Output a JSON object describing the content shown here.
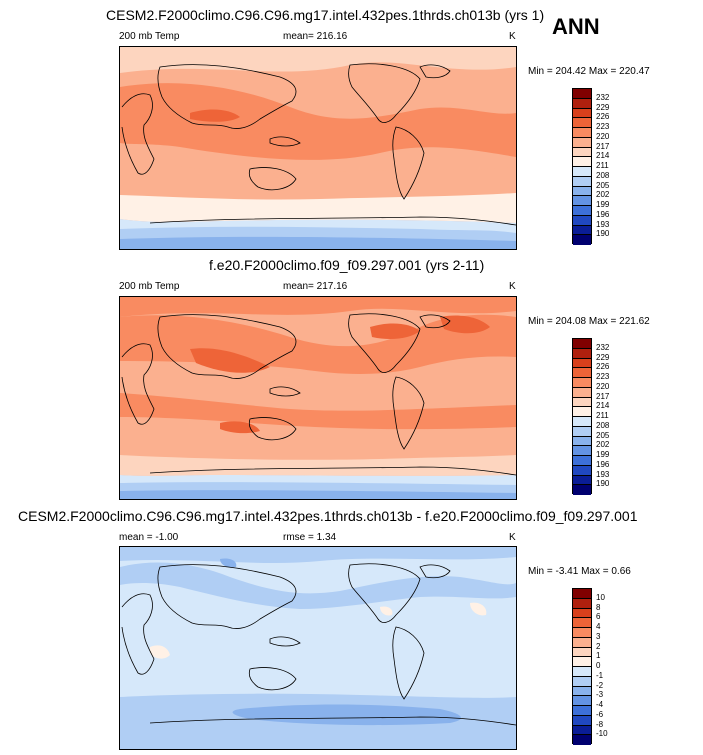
{
  "season": "ANN",
  "panels": [
    {
      "title": "CESM2.F2000climo.C96.C96.mg17.intel.432pes.1thrds.ch013b (yrs 1)",
      "variable": "200 mb Temp",
      "stat_text": "mean= 216.16",
      "rmse_text": "",
      "units": "K",
      "minmax": "Min = 204.42 Max = 220.47"
    },
    {
      "title": "f.e20.F2000climo.f09_f09.297.001 (yrs 2-11)",
      "variable": "200 mb Temp",
      "stat_text": "mean= 217.16",
      "rmse_text": "",
      "units": "K",
      "minmax": "Min = 204.08 Max = 221.62"
    },
    {
      "title": "CESM2.F2000climo.C96.C96.mg17.intel.432pes.1thrds.ch013b - f.e20.F2000climo.f09_f09.297.001",
      "variable": "",
      "stat_text": "mean =  -1.00",
      "rmse_text": "rmse =  1.34",
      "units": "K",
      "minmax": "Min =  -3.41 Max =   0.66"
    }
  ],
  "chart_data": [
    {
      "type": "heatmap",
      "title": "CESM2.F2000climo.C96.C96.mg17.intel.432pes.1thrds.ch013b (yrs 1)",
      "variable": "200 mb Temp",
      "units": "K",
      "mean": 216.16,
      "min": 204.42,
      "max": 220.47,
      "contour_levels": [
        "232",
        "229",
        "226",
        "223",
        "220",
        "217",
        "214",
        "211",
        "208",
        "205",
        "202",
        "199",
        "196",
        "193",
        "190"
      ],
      "colors": [
        "#800000",
        "#b0200e",
        "#d8401c",
        "#ee6438",
        "#f98b61",
        "#fbb08f",
        "#fdd5bf",
        "#fff1e6",
        "#d6e8fa",
        "#b0cef4",
        "#89b2ec",
        "#6393e3",
        "#3d70d8",
        "#2048c0",
        "#0a1d96",
        "#000070"
      ]
    },
    {
      "type": "heatmap",
      "title": "f.e20.F2000climo.f09_f09.297.001 (yrs 2-11)",
      "variable": "200 mb Temp",
      "units": "K",
      "mean": 217.16,
      "min": 204.08,
      "max": 221.62,
      "contour_levels": [
        "232",
        "229",
        "226",
        "223",
        "220",
        "217",
        "214",
        "211",
        "208",
        "205",
        "202",
        "199",
        "196",
        "193",
        "190"
      ],
      "colors": [
        "#800000",
        "#b0200e",
        "#d8401c",
        "#ee6438",
        "#f98b61",
        "#fbb08f",
        "#fdd5bf",
        "#fff1e6",
        "#d6e8fa",
        "#b0cef4",
        "#89b2ec",
        "#6393e3",
        "#3d70d8",
        "#2048c0",
        "#0a1d96",
        "#000070"
      ]
    },
    {
      "type": "heatmap",
      "title": "CESM2.F2000climo.C96.C96.mg17.intel.432pes.1thrds.ch013b - f.e20.F2000climo.f09_f09.297.001",
      "units": "K",
      "mean": -1.0,
      "rmse": 1.34,
      "min": -3.41,
      "max": 0.66,
      "contour_levels": [
        "10",
        "8",
        "6",
        "4",
        "3",
        "2",
        "1",
        "0",
        "-1",
        "-2",
        "-3",
        "-4",
        "-6",
        "-8",
        "-10"
      ],
      "colors": [
        "#800000",
        "#b0200e",
        "#d8401c",
        "#ee6438",
        "#f98b61",
        "#fbb08f",
        "#fdd5bf",
        "#fff1e6",
        "#d6e8fa",
        "#b0cef4",
        "#89b2ec",
        "#6393e3",
        "#3d70d8",
        "#2048c0",
        "#0a1d96",
        "#000070"
      ]
    }
  ]
}
